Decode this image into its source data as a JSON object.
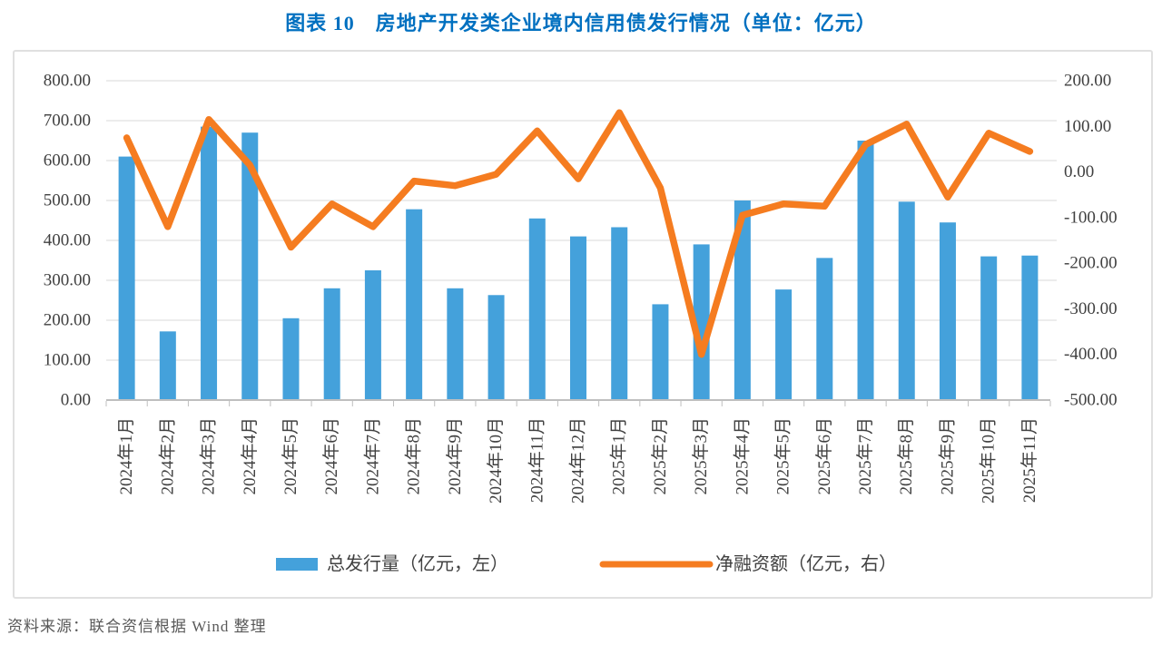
{
  "title": "图表 10　房地产开发类企业境内信用债发行情况（单位：亿元）",
  "source": "资料来源：联合资信根据 Wind 整理",
  "colors": {
    "title_text": "#0070C0",
    "bar": "#44A1DB",
    "line": "#F57C20",
    "grid": "#D9D9D9",
    "axis": "#BFBFBF",
    "tick_label": "#404040",
    "source_text": "#595959",
    "frame_border": "#E0E0E0"
  },
  "chart_data": {
    "type": "bar",
    "combo": "bar+line, dual axis",
    "categories": [
      "2024年1月",
      "2024年2月",
      "2024年3月",
      "2024年4月",
      "2024年5月",
      "2024年6月",
      "2024年7月",
      "2024年8月",
      "2024年9月",
      "2024年10月",
      "2024年11月",
      "2024年12月",
      "2025年1月",
      "2025年2月",
      "2025年3月",
      "2025年4月",
      "2025年5月",
      "2025年6月",
      "2025年7月",
      "2025年8月",
      "2025年9月",
      "2025年10月",
      "2025年11月"
    ],
    "series": [
      {
        "name": "总发行量（亿元，左）",
        "type": "bar",
        "axis": "left",
        "color": "#44A1DB",
        "values": [
          610,
          172,
          685,
          670,
          205,
          280,
          325,
          478,
          280,
          263,
          455,
          410,
          433,
          240,
          390,
          500,
          277,
          356,
          650,
          497,
          445,
          360,
          362
        ]
      },
      {
        "name": "净融资额（亿元，右）",
        "type": "line",
        "axis": "right",
        "color": "#F57C20",
        "values": [
          75,
          -120,
          115,
          15,
          -165,
          -70,
          -120,
          -20,
          -30,
          -5,
          90,
          -15,
          130,
          -35,
          -400,
          -95,
          -70,
          -75,
          60,
          105,
          -55,
          85,
          45
        ]
      }
    ],
    "left_axis": {
      "min": 0,
      "max": 800,
      "step": 100,
      "tick_format": "0.00"
    },
    "right_axis": {
      "min": -500,
      "max": 200,
      "step": 100,
      "tick_format": "0.00"
    },
    "grid": "horizontal",
    "legend_position": "bottom",
    "x_labels_rotation": -90
  }
}
